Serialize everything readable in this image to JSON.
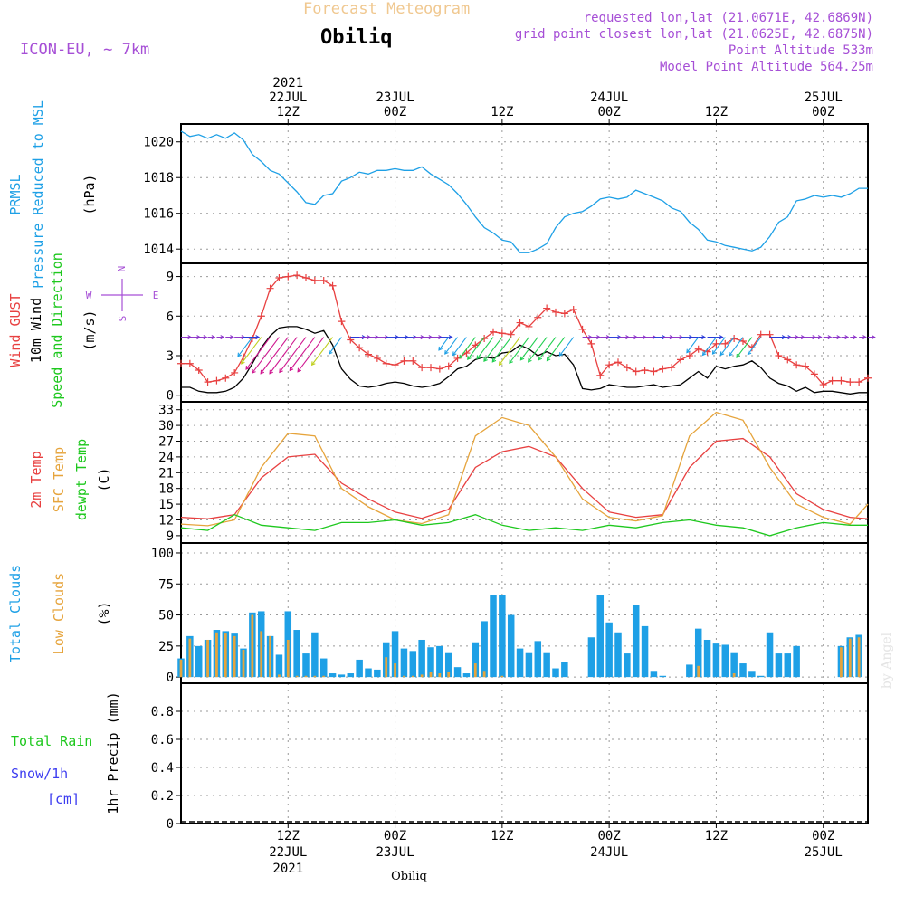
{
  "header": {
    "model": "ICON-EU, ~ 7km",
    "product": "Forecast Meteogram",
    "location": "Obiliq",
    "requested": "requested lon,lat (21.0671E, 42.6869N)",
    "gridpoint": "grid point closest lon,lat (21.0625E, 42.6875N)",
    "point_alt": "Point Altitude 533m",
    "model_alt": "Model Point Altitude 564.25m",
    "credit": "by Angel",
    "footer_location": "Obiliq"
  },
  "colors": {
    "purple": "#a64fd6",
    "blue": "#1ea0e6",
    "red": "#e84040",
    "orange": "#e6a43c",
    "green": "#1ec81e",
    "snow": "#3c3cf0"
  },
  "time_axis": {
    "top": [
      {
        "t": 12,
        "lines": [
          "2021",
          "22JUL",
          "12Z"
        ]
      },
      {
        "t": 24,
        "lines": [
          "23JUL",
          "00Z"
        ]
      },
      {
        "t": 36,
        "lines": [
          "12Z"
        ]
      },
      {
        "t": 48,
        "lines": [
          "24JUL",
          "00Z"
        ]
      },
      {
        "t": 60,
        "lines": [
          "12Z"
        ]
      },
      {
        "t": 72,
        "lines": [
          "25JUL",
          "00Z"
        ]
      }
    ],
    "bottom": [
      {
        "t": 12,
        "lines": [
          "12Z",
          "22JUL",
          "2021"
        ]
      },
      {
        "t": 24,
        "lines": [
          "00Z",
          "23JUL"
        ]
      },
      {
        "t": 36,
        "lines": [
          "12Z"
        ]
      },
      {
        "t": 48,
        "lines": [
          "00Z",
          "24JUL"
        ]
      },
      {
        "t": 60,
        "lines": [
          "12Z"
        ]
      },
      {
        "t": 72,
        "lines": [
          "00Z",
          "25JUL"
        ]
      }
    ]
  },
  "panels": {
    "pressure": {
      "labels": [
        {
          "text": "PRMSL",
          "color": "blue"
        },
        {
          "text": "Pressure Reduced to MSL",
          "color": "blue"
        },
        {
          "text": "(hPa)",
          "color": "black"
        }
      ]
    },
    "wind": {
      "labels": [
        {
          "text": "Wind GUST",
          "color": "red"
        },
        {
          "text": "10m Wind",
          "color": "black"
        },
        {
          "text": "Speed and Direction",
          "color": "green"
        },
        {
          "text": "(m/s)",
          "color": "black"
        }
      ],
      "compass": {
        "n": "N",
        "s": "S",
        "w": "W",
        "e": "E"
      }
    },
    "temp": {
      "labels": [
        {
          "text": "2m Temp",
          "color": "red"
        },
        {
          "text": "SFC Temp",
          "color": "orange"
        },
        {
          "text": "dewpt Temp",
          "color": "green"
        },
        {
          "text": "(C)",
          "color": "black"
        }
      ]
    },
    "clouds": {
      "labels": [
        {
          "text": "Total Clouds",
          "color": "blue"
        },
        {
          "text": "Low Clouds",
          "color": "orange"
        },
        {
          "text": "(%)",
          "color": "black"
        }
      ]
    },
    "precip": {
      "left_labels": [
        {
          "text": "Total  Rain",
          "color": "green"
        },
        {
          "text": "Snow/1h",
          "color": "snow"
        },
        {
          "text": "[cm]",
          "color": "snow"
        }
      ],
      "ylabel": "1hr Precip (mm)"
    }
  },
  "chart_data": [
    {
      "type": "line",
      "name": "pressure",
      "x_start_hour": 0,
      "x_end_hour": 77,
      "ylim": [
        1013.2,
        1021.0
      ],
      "yticks": [
        1014,
        1016,
        1018,
        1020
      ],
      "series": [
        {
          "name": "PRMSL",
          "color": "blue",
          "x": [
            0,
            1,
            2,
            3,
            4,
            5,
            6,
            7,
            8,
            9,
            10,
            11,
            12,
            13,
            14,
            15,
            16,
            17,
            18,
            19,
            20,
            21,
            22,
            23,
            24,
            25,
            26,
            27,
            28,
            29,
            30,
            31,
            32,
            33,
            34,
            35,
            36,
            37,
            38,
            39,
            40,
            41,
            42,
            43,
            44,
            45,
            46,
            47,
            48,
            49,
            50,
            51,
            52,
            53,
            54,
            55,
            56,
            57,
            58,
            59,
            60,
            61,
            62,
            63,
            64,
            65,
            66,
            67,
            68,
            69,
            70,
            71,
            72,
            73,
            74,
            75,
            76,
            77
          ],
          "values": [
            1020.6,
            1020.3,
            1020.4,
            1020.2,
            1020.4,
            1020.2,
            1020.5,
            1020.1,
            1019.3,
            1018.9,
            1018.4,
            1018.2,
            1017.7,
            1017.2,
            1016.6,
            1016.5,
            1017.0,
            1017.1,
            1017.8,
            1018.0,
            1018.3,
            1018.2,
            1018.4,
            1018.4,
            1018.5,
            1018.4,
            1018.4,
            1018.6,
            1018.2,
            1017.9,
            1017.6,
            1017.1,
            1016.5,
            1015.8,
            1015.2,
            1014.9,
            1014.5,
            1014.4,
            1013.8,
            1013.8,
            1014.0,
            1014.3,
            1015.2,
            1015.8,
            1016.0,
            1016.1,
            1016.4,
            1016.8,
            1016.9,
            1016.8,
            1016.9,
            1017.3,
            1017.1,
            1016.9,
            1016.7,
            1016.3,
            1016.1,
            1015.5,
            1015.1,
            1014.5,
            1014.4,
            1014.2,
            1014.1,
            1014.0,
            1013.9,
            1014.1,
            1014.7,
            1015.5,
            1015.8,
            1016.7,
            1016.8,
            1017.0,
            1016.9,
            1017.0,
            1016.9,
            1017.1,
            1017.4,
            1017.4
          ]
        }
      ]
    },
    {
      "type": "line",
      "name": "wind",
      "ylim": [
        -0.5,
        10
      ],
      "yticks": [
        0,
        3,
        6,
        9
      ],
      "series": [
        {
          "name": "Wind GUST",
          "color": "red",
          "marker": "plus",
          "x": [
            0,
            1,
            2,
            3,
            4,
            5,
            6,
            7,
            8,
            9,
            10,
            11,
            12,
            13,
            14,
            15,
            16,
            17,
            18,
            19,
            20,
            21,
            22,
            23,
            24,
            25,
            26,
            27,
            28,
            29,
            30,
            31,
            32,
            33,
            34,
            35,
            36,
            37,
            38,
            39,
            40,
            41,
            42,
            43,
            44,
            45,
            46,
            47,
            48,
            49,
            50,
            51,
            52,
            53,
            54,
            55,
            56,
            57,
            58,
            59,
            60,
            61,
            62,
            63,
            64,
            65,
            66,
            67,
            68,
            69,
            70,
            71,
            72,
            73,
            74,
            75,
            76,
            77
          ],
          "values": [
            2.4,
            2.4,
            1.9,
            1.0,
            1.1,
            1.3,
            1.7,
            2.9,
            4.3,
            6.0,
            8.1,
            8.9,
            9.0,
            9.1,
            8.9,
            8.7,
            8.7,
            8.3,
            5.6,
            4.2,
            3.6,
            3.1,
            2.8,
            2.4,
            2.3,
            2.6,
            2.6,
            2.1,
            2.1,
            2.0,
            2.2,
            2.8,
            3.2,
            3.8,
            4.3,
            4.8,
            4.7,
            4.6,
            5.5,
            5.2,
            5.9,
            6.6,
            6.3,
            6.2,
            6.5,
            5.0,
            3.9,
            1.5,
            2.3,
            2.5,
            2.1,
            1.8,
            1.9,
            1.8,
            2.0,
            2.1,
            2.7,
            3.0,
            3.5,
            3.3,
            3.9,
            3.9,
            4.3,
            4.1,
            3.6,
            4.6,
            4.6,
            3.0,
            2.7,
            2.3,
            2.2,
            1.6,
            0.8,
            1.1,
            1.1,
            1.0,
            1.0,
            1.3
          ]
        },
        {
          "name": "10m Wind",
          "color": "black",
          "x": [
            0,
            1,
            2,
            3,
            4,
            5,
            6,
            7,
            8,
            9,
            10,
            11,
            12,
            13,
            14,
            15,
            16,
            17,
            18,
            19,
            20,
            21,
            22,
            23,
            24,
            25,
            26,
            27,
            28,
            29,
            30,
            31,
            32,
            33,
            34,
            35,
            36,
            37,
            38,
            39,
            40,
            41,
            42,
            43,
            44,
            45,
            46,
            47,
            48,
            49,
            50,
            51,
            52,
            53,
            54,
            55,
            56,
            57,
            58,
            59,
            60,
            61,
            62,
            63,
            64,
            65,
            66,
            67,
            68,
            69,
            70,
            71,
            72,
            73,
            74,
            75,
            76,
            77
          ],
          "values": [
            0.6,
            0.6,
            0.3,
            0.2,
            0.2,
            0.3,
            0.6,
            1.3,
            2.4,
            3.6,
            4.5,
            5.1,
            5.2,
            5.2,
            5.0,
            4.7,
            4.9,
            3.8,
            2.0,
            1.2,
            0.7,
            0.6,
            0.7,
            0.9,
            1.0,
            0.9,
            0.7,
            0.6,
            0.7,
            0.9,
            1.4,
            2.0,
            2.2,
            2.7,
            2.9,
            2.8,
            3.2,
            3.3,
            3.8,
            3.5,
            3.0,
            3.3,
            3.0,
            3.1,
            2.3,
            0.5,
            0.4,
            0.5,
            0.8,
            0.7,
            0.6,
            0.6,
            0.7,
            0.8,
            0.6,
            0.7,
            0.8,
            1.3,
            1.8,
            1.3,
            2.2,
            2.0,
            2.2,
            2.3,
            2.6,
            2.1,
            1.3,
            0.9,
            0.7,
            0.3,
            0.6,
            0.2,
            0.3,
            0.3,
            0.2,
            0.1,
            0.2,
            0.2
          ]
        }
      ]
    },
    {
      "type": "line",
      "name": "temperature",
      "ylim": [
        7.6,
        34.5
      ],
      "yticks": [
        9,
        12,
        15,
        18,
        21,
        24,
        27,
        30,
        33
      ],
      "series": [
        {
          "name": "2m Temp",
          "color": "red",
          "x": [
            0,
            3,
            6,
            9,
            12,
            15,
            18,
            21,
            24,
            27,
            30,
            33,
            36,
            39,
            42,
            45,
            48,
            51,
            54,
            57,
            60,
            63,
            66,
            69,
            72,
            75,
            77
          ],
          "values": [
            12.5,
            12.2,
            13.0,
            20.0,
            24.0,
            24.5,
            19.0,
            16.0,
            13.5,
            12.3,
            14.0,
            22.0,
            25.0,
            26.0,
            24.0,
            18.0,
            13.5,
            12.5,
            13.0,
            22.0,
            27.0,
            27.5,
            24.0,
            17.0,
            14.0,
            12.5,
            12.2
          ]
        },
        {
          "name": "SFC Temp",
          "color": "orange",
          "x": [
            0,
            3,
            6,
            9,
            12,
            15,
            18,
            21,
            24,
            27,
            30,
            33,
            36,
            39,
            42,
            45,
            48,
            51,
            54,
            57,
            60,
            63,
            66,
            69,
            72,
            75,
            77
          ],
          "values": [
            11.2,
            10.9,
            12.0,
            22.0,
            28.5,
            28.0,
            18.0,
            14.5,
            12.0,
            11.3,
            13.0,
            28.0,
            31.5,
            30.0,
            24.0,
            16.0,
            12.5,
            11.8,
            12.8,
            28.0,
            32.5,
            31.0,
            22.0,
            15.0,
            12.5,
            11.2,
            15.0
          ]
        },
        {
          "name": "dewpt Temp",
          "color": "green",
          "x": [
            0,
            3,
            6,
            9,
            12,
            15,
            18,
            21,
            24,
            27,
            30,
            33,
            36,
            39,
            42,
            45,
            48,
            51,
            54,
            57,
            60,
            63,
            66,
            69,
            72,
            75,
            77
          ],
          "values": [
            10.5,
            10.0,
            13.0,
            11.0,
            10.5,
            10.0,
            11.5,
            11.5,
            12.0,
            11.0,
            11.5,
            13.0,
            11.0,
            10.0,
            10.5,
            10.0,
            11.0,
            10.5,
            11.5,
            12.0,
            11.0,
            10.5,
            9.0,
            10.5,
            11.5,
            11.0,
            11.0
          ]
        }
      ]
    },
    {
      "type": "bar",
      "name": "clouds",
      "ylim": [
        -5,
        108
      ],
      "yticks": [
        0,
        25,
        50,
        75,
        100
      ],
      "series": [
        {
          "name": "Total Clouds",
          "color": "blue",
          "values": [
            15,
            33,
            25,
            30,
            38,
            37,
            35,
            23,
            52,
            53,
            33,
            18,
            53,
            38,
            19,
            36,
            15,
            3,
            2,
            3,
            14,
            7,
            6,
            28,
            37,
            23,
            21,
            30,
            24,
            25,
            20,
            8,
            3,
            28,
            45,
            66,
            66,
            50,
            23,
            20,
            29,
            20,
            7,
            12,
            0,
            0,
            32,
            66,
            44,
            36,
            19,
            58,
            41,
            5,
            1,
            0,
            0,
            10,
            39,
            30,
            27,
            26,
            20,
            11,
            5,
            1,
            36,
            19,
            19,
            25,
            0,
            0,
            0,
            0,
            25,
            32,
            34,
            0
          ]
        },
        {
          "name": "Low Clouds",
          "color": "orange",
          "values": [
            14,
            31,
            0,
            30,
            36,
            35,
            33,
            22,
            50,
            37,
            33,
            2,
            30,
            1,
            1,
            1,
            1,
            0,
            0,
            0,
            0,
            0,
            0,
            16,
            11,
            1,
            1,
            2,
            4,
            3,
            4,
            0,
            0,
            11,
            5,
            0,
            1,
            0,
            0,
            0,
            0,
            0,
            0,
            0,
            0,
            0,
            0,
            0,
            0,
            0,
            0,
            0,
            0,
            0,
            0,
            0,
            0,
            0,
            9,
            0,
            0,
            0,
            3,
            0,
            0,
            0,
            0,
            0,
            0,
            0,
            0,
            0,
            0,
            0,
            24,
            31,
            32,
            0
          ]
        }
      ]
    },
    {
      "type": "line",
      "name": "precipitation",
      "ylim": [
        0,
        1.0
      ],
      "yticks": [
        0,
        0.2,
        0.4,
        0.6,
        0.8
      ],
      "ylabel": "1hr Precip (mm)",
      "series": [
        {
          "name": "Total Rain",
          "color": "green",
          "values": [
            0
          ]
        }
      ]
    }
  ]
}
